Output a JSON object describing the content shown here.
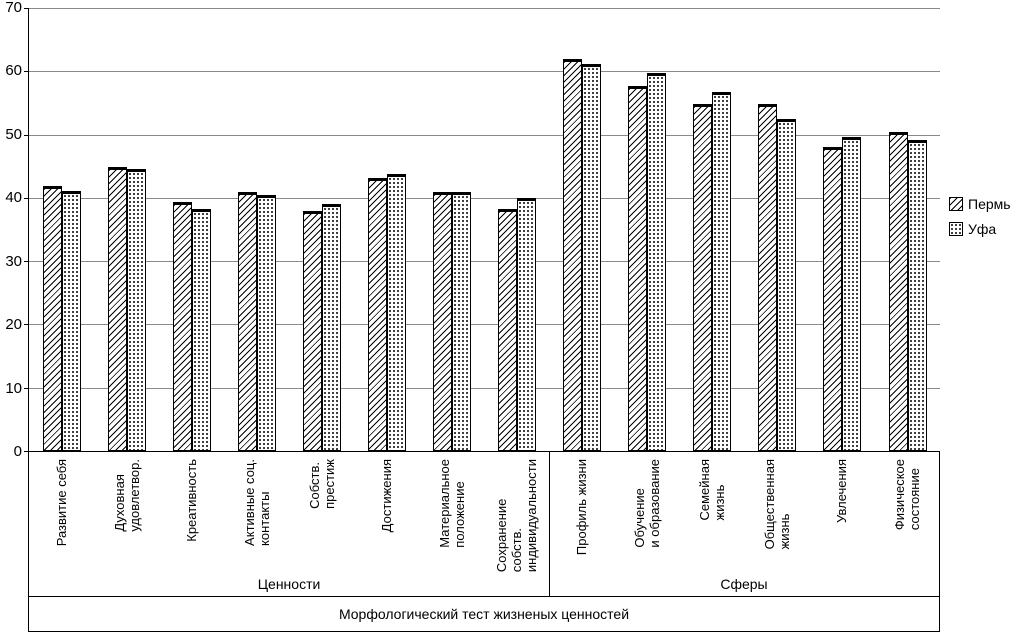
{
  "chart_data": {
    "type": "bar",
    "axis_title": "Морфологический тест жизненых ценностей",
    "categories": [
      "Развитие себя",
      "Духовная\nудовлетвор.",
      "Креативность",
      "Активные соц.\nконтакты",
      "Собств.\nпрестиж",
      "Достижения",
      "Материальное\nположение",
      "Сохранение\nсобств.\nиндивидуальности",
      "Профиль жизни",
      "Обучение\nи образование",
      "Семейная\nжизнь",
      "Общественная\nжизнь",
      "Увлечения",
      "Физическое\nсостояние"
    ],
    "series": [
      {
        "name": "Пермь",
        "pattern": "diagonal-hatch",
        "values": [
          41.9,
          44.8,
          39.4,
          41.0,
          37.9,
          43.2,
          41.0,
          38.3,
          61.9,
          57.6,
          54.8,
          54.8,
          48.0,
          50.4
        ]
      },
      {
        "name": "Уфа",
        "pattern": "dots",
        "values": [
          41.1,
          44.5,
          38.2,
          40.5,
          39.1,
          43.7,
          41.0,
          40.0,
          61.1,
          59.8,
          56.8,
          52.4,
          49.6,
          49.1
        ]
      }
    ],
    "groups": [
      {
        "label": "Ценности",
        "span": 8
      },
      {
        "label": "Сферы",
        "span": 6
      }
    ],
    "ylim": [
      0,
      70
    ],
    "yticks": [
      0,
      10,
      20,
      30,
      40,
      50,
      60,
      70
    ],
    "grid": true,
    "legend_position": "right"
  },
  "colors": {
    "bar_fill": "#ffffff",
    "bar_border": "#000000",
    "gridline": "#8a8a8a",
    "axis": "#000000"
  }
}
